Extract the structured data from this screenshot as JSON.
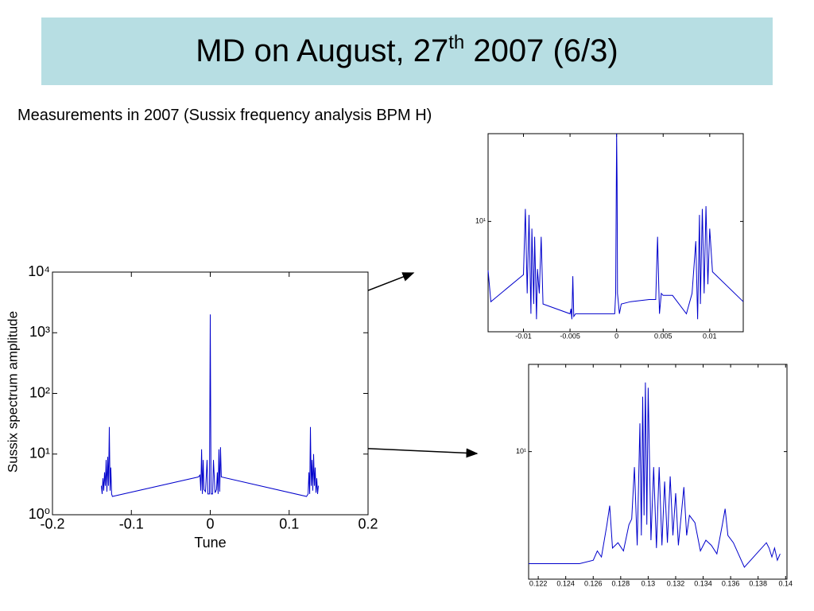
{
  "slide": {
    "title": [
      "MD on August, 27",
      "th",
      " 2007 (6/3)"
    ],
    "subtitle": "Measurements in 2007 (Sussix frequency analysis BPM H)"
  },
  "chart_data": [
    {
      "type": "line",
      "xlabel": "Tune",
      "ylabel": "Sussix spectrum amplitude",
      "log_y": true,
      "color": "#0000cc",
      "xlim": [
        -0.2,
        0.2
      ],
      "xticks": [
        -0.2,
        -0.1,
        0,
        0.1,
        0.2
      ],
      "ylim": [
        1,
        10000
      ],
      "yticks": [
        {
          "value": 1,
          "label": "10⁰"
        },
        {
          "value": 10,
          "label": "10¹"
        },
        {
          "value": 100,
          "label": "10²"
        },
        {
          "value": 1000,
          "label": "10³"
        },
        {
          "value": 10000,
          "label": "10⁴"
        }
      ],
      "x": [
        -0.138,
        -0.137,
        -0.136,
        -0.135,
        -0.134,
        -0.133,
        -0.132,
        -0.131,
        -0.13,
        -0.129,
        -0.128,
        -0.127,
        -0.126,
        -0.125,
        -0.124,
        -0.015,
        -0.013,
        -0.012,
        -0.011,
        -0.01,
        -0.009,
        -0.008,
        -0.006,
        -0.004,
        -0.003,
        -0.001,
        0,
        0.001,
        0.003,
        0.004,
        0.006,
        0.008,
        0.009,
        0.01,
        0.011,
        0.012,
        0.013,
        0.014,
        0.122,
        0.124,
        0.125,
        0.126,
        0.127,
        0.128,
        0.129,
        0.13,
        0.131,
        0.132,
        0.133,
        0.134,
        0.135,
        0.136,
        0.137
      ],
      "values": [
        3,
        2.2,
        4,
        2.5,
        5,
        3,
        8,
        2.4,
        9,
        3,
        28,
        2.5,
        6,
        2.2,
        2,
        4.2,
        4.5,
        2.5,
        12,
        2.2,
        8,
        2.6,
        2.4,
        8,
        2.2,
        2.2,
        2000,
        2.2,
        2.2,
        8,
        2.3,
        2.6,
        5,
        2.2,
        12,
        2.4,
        13,
        4.2,
        2,
        2.2,
        5,
        2.2,
        28,
        3,
        8,
        2.5,
        10,
        3,
        6,
        2.3,
        4,
        2.2,
        3
      ]
    },
    {
      "type": "line",
      "log_y": true,
      "color": "#0000cc",
      "xlim": [
        -0.0138,
        0.0136
      ],
      "xticks": [
        -0.01,
        -0.005,
        0,
        0.005,
        0.01
      ],
      "ylim": [
        2,
        36
      ],
      "yticks": [
        {
          "value": 10,
          "label": "10¹"
        }
      ],
      "x": [
        -0.0138,
        -0.0135,
        -0.01,
        -0.0098,
        -0.0096,
        -0.0094,
        -0.0092,
        -0.0091,
        -0.0089,
        -0.0088,
        -0.0086,
        -0.0085,
        -0.0083,
        -0.0081,
        -0.0079,
        -0.005,
        -0.0049,
        -0.0048,
        -0.0047,
        -0.0046,
        -0.0044,
        -0.0002,
        -0.0001,
        0,
        5e-05,
        0.0001,
        0.0003,
        0.0005,
        0.0015,
        0.0035,
        0.0042,
        0.0044,
        0.0046,
        0.0048,
        0.005,
        0.006,
        0.0075,
        0.0081,
        0.0085,
        0.0087,
        0.0089,
        0.009,
        0.0092,
        0.0094,
        0.0096,
        0.0098,
        0.01,
        0.0103,
        0.0136
      ],
      "values": [
        4.9,
        3.1,
        4.6,
        12,
        3.5,
        11,
        2.6,
        9,
        3,
        8,
        2.4,
        5,
        3.5,
        8,
        3,
        2.6,
        2.8,
        2.4,
        4.5,
        2.5,
        2.6,
        2.6,
        3.5,
        36,
        18,
        3.5,
        2.6,
        3,
        3.1,
        3.2,
        3.2,
        8,
        2.6,
        3.5,
        3.4,
        3.4,
        2.6,
        3.5,
        7.5,
        2.4,
        11,
        3,
        12,
        3.5,
        12.5,
        4,
        9,
        4.8,
        3.1
      ]
    },
    {
      "type": "line",
      "log_y": true,
      "color": "#0000cc",
      "xlim": [
        0.1213,
        0.1401
      ],
      "xticks": [
        0.122,
        0.124,
        0.126,
        0.128,
        0.13,
        0.132,
        0.134,
        0.136,
        0.138,
        0.14
      ],
      "ylim": [
        1.6,
        35
      ],
      "yticks": [
        {
          "value": 10,
          "label": "10¹"
        }
      ],
      "x": [
        0.1213,
        0.125,
        0.126,
        0.1263,
        0.1266,
        0.127,
        0.1272,
        0.1274,
        0.1278,
        0.1282,
        0.1286,
        0.1288,
        0.129,
        0.1292,
        0.1294,
        0.1295,
        0.1296,
        0.1297,
        0.1298,
        0.1299,
        0.13,
        0.1302,
        0.1304,
        0.1306,
        0.1308,
        0.131,
        0.1312,
        0.1314,
        0.1316,
        0.1318,
        0.132,
        0.1322,
        0.1326,
        0.1328,
        0.133,
        0.1334,
        0.1338,
        0.1342,
        0.1346,
        0.135,
        0.1354,
        0.1356,
        0.1358,
        0.1362,
        0.137,
        0.1386,
        0.1388,
        0.139,
        0.1392,
        0.1394,
        0.1396
      ],
      "values": [
        2,
        2,
        2.1,
        2.4,
        2.2,
        3.5,
        4.6,
        2.5,
        2.7,
        2.4,
        3.5,
        3.8,
        8,
        2.6,
        15,
        3,
        22,
        4,
        27,
        3.5,
        25,
        2.8,
        8,
        2.5,
        8,
        2.6,
        6.5,
        2.7,
        7,
        3,
        5.5,
        2.6,
        6,
        3,
        4,
        3.6,
        2.4,
        2.8,
        2.6,
        2.3,
        3.5,
        4.4,
        3,
        2.7,
        1.9,
        2.7,
        2.5,
        2.2,
        2.5,
        2.1,
        2.3
      ]
    }
  ]
}
